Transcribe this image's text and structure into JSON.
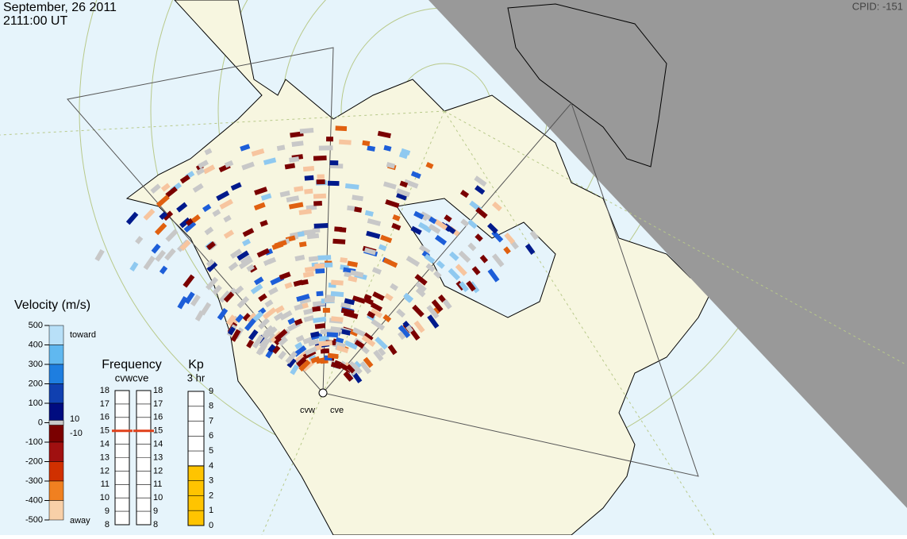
{
  "header": {
    "date": "September, 26 2011",
    "time": "2111:00 UT",
    "cpid": "CPID:  -151"
  },
  "velocity_scale": {
    "title": "Velocity (m/s)",
    "ticks": [
      500,
      400,
      300,
      200,
      100,
      0,
      -100,
      -200,
      -300,
      -400,
      -500
    ],
    "toward": "toward",
    "away": "away",
    "inner_labels": [
      10,
      -10
    ]
  },
  "frequency": {
    "title": "Frequency",
    "radars": "cvwcve",
    "ticks": [
      18,
      17,
      16,
      15,
      14,
      13,
      12,
      11,
      10,
      9,
      8
    ],
    "cvw": 15,
    "cve": 15
  },
  "kp": {
    "title": "Kp",
    "subtitle": "3 hr",
    "ticks": [
      9,
      8,
      7,
      6,
      5,
      4,
      3,
      2,
      1,
      0
    ],
    "value": 4
  },
  "radars": [
    "cvw",
    "cve"
  ]
}
